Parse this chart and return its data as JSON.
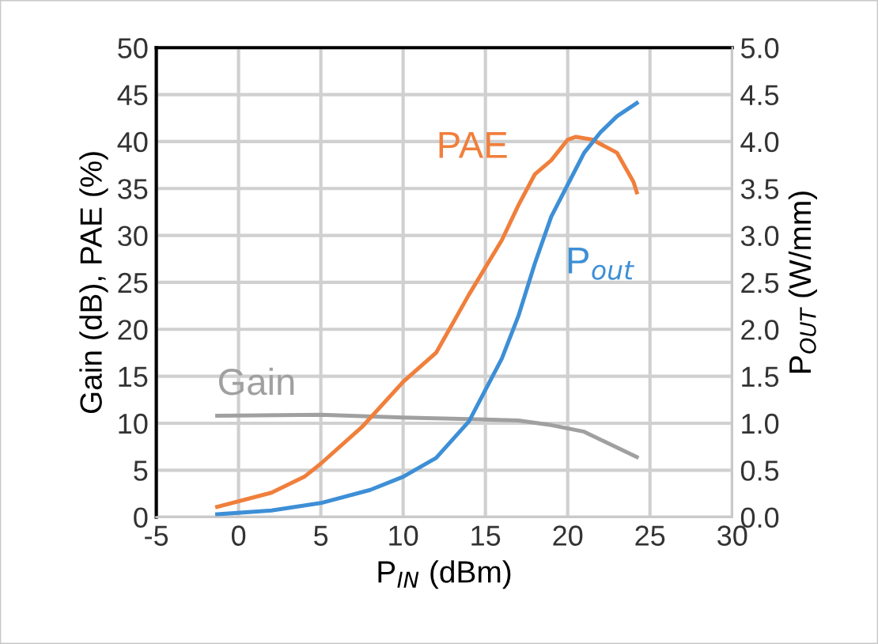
{
  "chart_data": {
    "type": "line",
    "xlabel": "P$_{IN}$ (dBm)",
    "ylabel": "Gain (dB), PAE (%)",
    "y2label": "P$_{OUT}$ (W/mm)",
    "xlim": [
      -5,
      30
    ],
    "xticks": [
      -5,
      0,
      5,
      10,
      15,
      20,
      25,
      30
    ],
    "ylim": [
      0,
      50
    ],
    "yticks": [
      0,
      5,
      10,
      15,
      20,
      25,
      30,
      35,
      40,
      45,
      50
    ],
    "y2lim": [
      0,
      5
    ],
    "y2ticks": [
      {
        "value": 0,
        "label": "0.0"
      },
      {
        "value": 0.5,
        "label": "0.5"
      },
      {
        "value": 1,
        "label": "1.0"
      },
      {
        "value": 1.5,
        "label": "1.5"
      },
      {
        "value": 2,
        "label": "2.0"
      },
      {
        "value": 2.5,
        "label": "2.5"
      },
      {
        "value": 3,
        "label": "3.0"
      },
      {
        "value": 3.5,
        "label": "3.5"
      },
      {
        "value": 4,
        "label": "4.0"
      },
      {
        "value": 4.5,
        "label": "4.5"
      },
      {
        "value": 5,
        "label": "5.0"
      }
    ],
    "grid": true,
    "legend": false,
    "marker": "none",
    "line_style": "solid",
    "series": [
      {
        "name": "Gain",
        "color": "#a0a0a0",
        "x": [
          -1.3,
          5,
          10,
          15,
          17,
          19,
          21,
          24.2
        ],
        "values": [
          10.8,
          10.9,
          10.6,
          10.4,
          10.3,
          9.8,
          9.1,
          6.4
        ]
      },
      {
        "name": "PAE",
        "color": "#f07f3c",
        "x": [
          -1.3,
          2,
          4,
          5,
          7.5,
          10,
          12,
          14,
          16,
          17,
          18,
          19,
          20,
          20.5,
          21.5,
          23,
          24,
          24.2
        ],
        "values": [
          1.1,
          2.6,
          4.3,
          5.7,
          9.6,
          14.4,
          17.5,
          23.7,
          29.5,
          33.2,
          36.5,
          38,
          40.2,
          40.5,
          40.2,
          38.8,
          35.7,
          34.6
        ]
      },
      {
        "name": "P$_{out}$",
        "color": "#3d8fd6",
        "axis": "y2",
        "x": [
          -1.3,
          2,
          5,
          8,
          10,
          12,
          14,
          16,
          17,
          18,
          19,
          20,
          21,
          22,
          23,
          24.2
        ],
        "values": [
          0.03,
          0.07,
          0.15,
          0.29,
          0.43,
          0.63,
          1.02,
          1.69,
          2.14,
          2.7,
          3.2,
          3.54,
          3.88,
          4.1,
          4.27,
          4.41
        ]
      }
    ]
  }
}
